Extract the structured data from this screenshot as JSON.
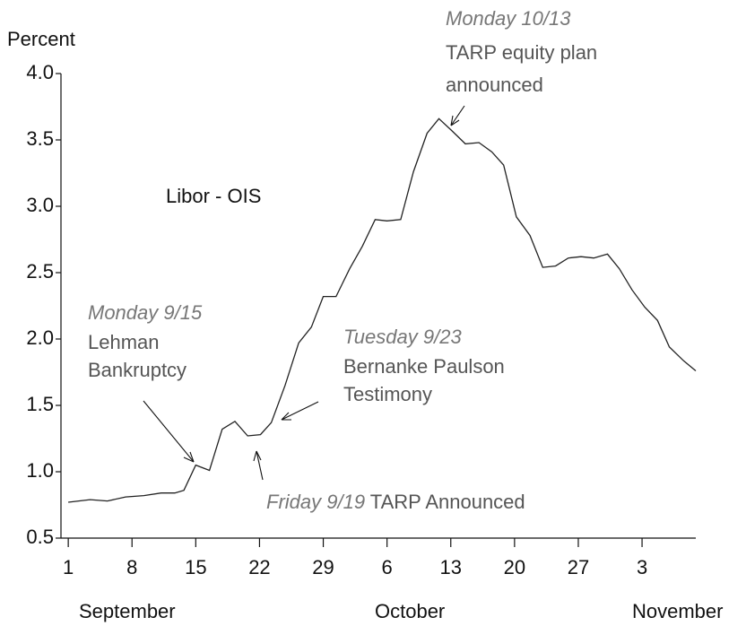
{
  "chart_data": {
    "type": "line",
    "y_label": "Percent",
    "series_label": "Libor - OIS",
    "x": [
      0,
      2.4,
      4.3,
      6.3,
      8.3,
      10.2,
      11.7,
      12.7,
      14.0,
      15.5,
      16.9,
      18.3,
      19.7,
      21.1,
      22.3,
      23.8,
      25.3,
      26.7,
      28.0,
      29.4,
      30.9,
      32.3,
      33.7,
      35.0,
      36.5,
      37.9,
      39.4,
      40.7,
      42.1,
      43.6,
      45.1,
      46.5,
      47.8,
      49.2,
      50.7,
      52.1,
      53.5,
      54.9,
      56.3,
      57.7,
      59.2,
      60.5,
      61.9,
      63.3,
      64.7,
      66.0,
      67.5,
      68.9
    ],
    "values": [
      0.77,
      0.79,
      0.78,
      0.81,
      0.82,
      0.84,
      0.84,
      0.86,
      1.05,
      1.01,
      1.32,
      1.38,
      1.27,
      1.28,
      1.37,
      1.65,
      1.97,
      2.09,
      2.32,
      2.32,
      2.53,
      2.7,
      2.9,
      2.89,
      2.9,
      3.26,
      3.55,
      3.66,
      3.57,
      3.47,
      3.48,
      3.41,
      3.31,
      2.92,
      2.78,
      2.54,
      2.55,
      2.61,
      2.62,
      2.61,
      2.64,
      2.53,
      2.37,
      2.24,
      2.14,
      1.94,
      1.84,
      1.76
    ],
    "color": "#222222",
    "xlim": [
      -0.8,
      68.9
    ],
    "xticks": [
      {
        "value": 0,
        "label": "1"
      },
      {
        "value": 7,
        "label": "8"
      },
      {
        "value": 14,
        "label": "15"
      },
      {
        "value": 21,
        "label": "22"
      },
      {
        "value": 28,
        "label": "29"
      },
      {
        "value": 35,
        "label": "6"
      },
      {
        "value": 42,
        "label": "13"
      },
      {
        "value": 49,
        "label": "20"
      },
      {
        "value": 56,
        "label": "27"
      },
      {
        "value": 63,
        "label": "3"
      }
    ],
    "months": [
      "September",
      "October",
      "November"
    ],
    "ylim": [
      0.5,
      4.0
    ],
    "yticks": [
      {
        "value": 0.5,
        "label": "0.5"
      },
      {
        "value": 1.0,
        "label": "1.0"
      },
      {
        "value": 1.5,
        "label": "1.5"
      },
      {
        "value": 2.0,
        "label": "2.0"
      },
      {
        "value": 2.5,
        "label": "2.5"
      },
      {
        "value": 3.0,
        "label": "3.0"
      },
      {
        "value": 3.5,
        "label": "3.5"
      },
      {
        "value": 4.0,
        "label": "4.0"
      }
    ],
    "annotations": [
      {
        "date": "Monday 9/15",
        "lines": [
          "Lehman",
          "Bankruptcy"
        ]
      },
      {
        "date": "Friday 9/19",
        "lines": [
          "TARP Announced"
        ]
      },
      {
        "date": "Tuesday 9/23",
        "lines": [
          "Bernanke Paulson",
          "Testimony"
        ]
      },
      {
        "date": "Monday 10/13",
        "lines": [
          "TARP equity plan",
          "announced"
        ]
      }
    ]
  }
}
